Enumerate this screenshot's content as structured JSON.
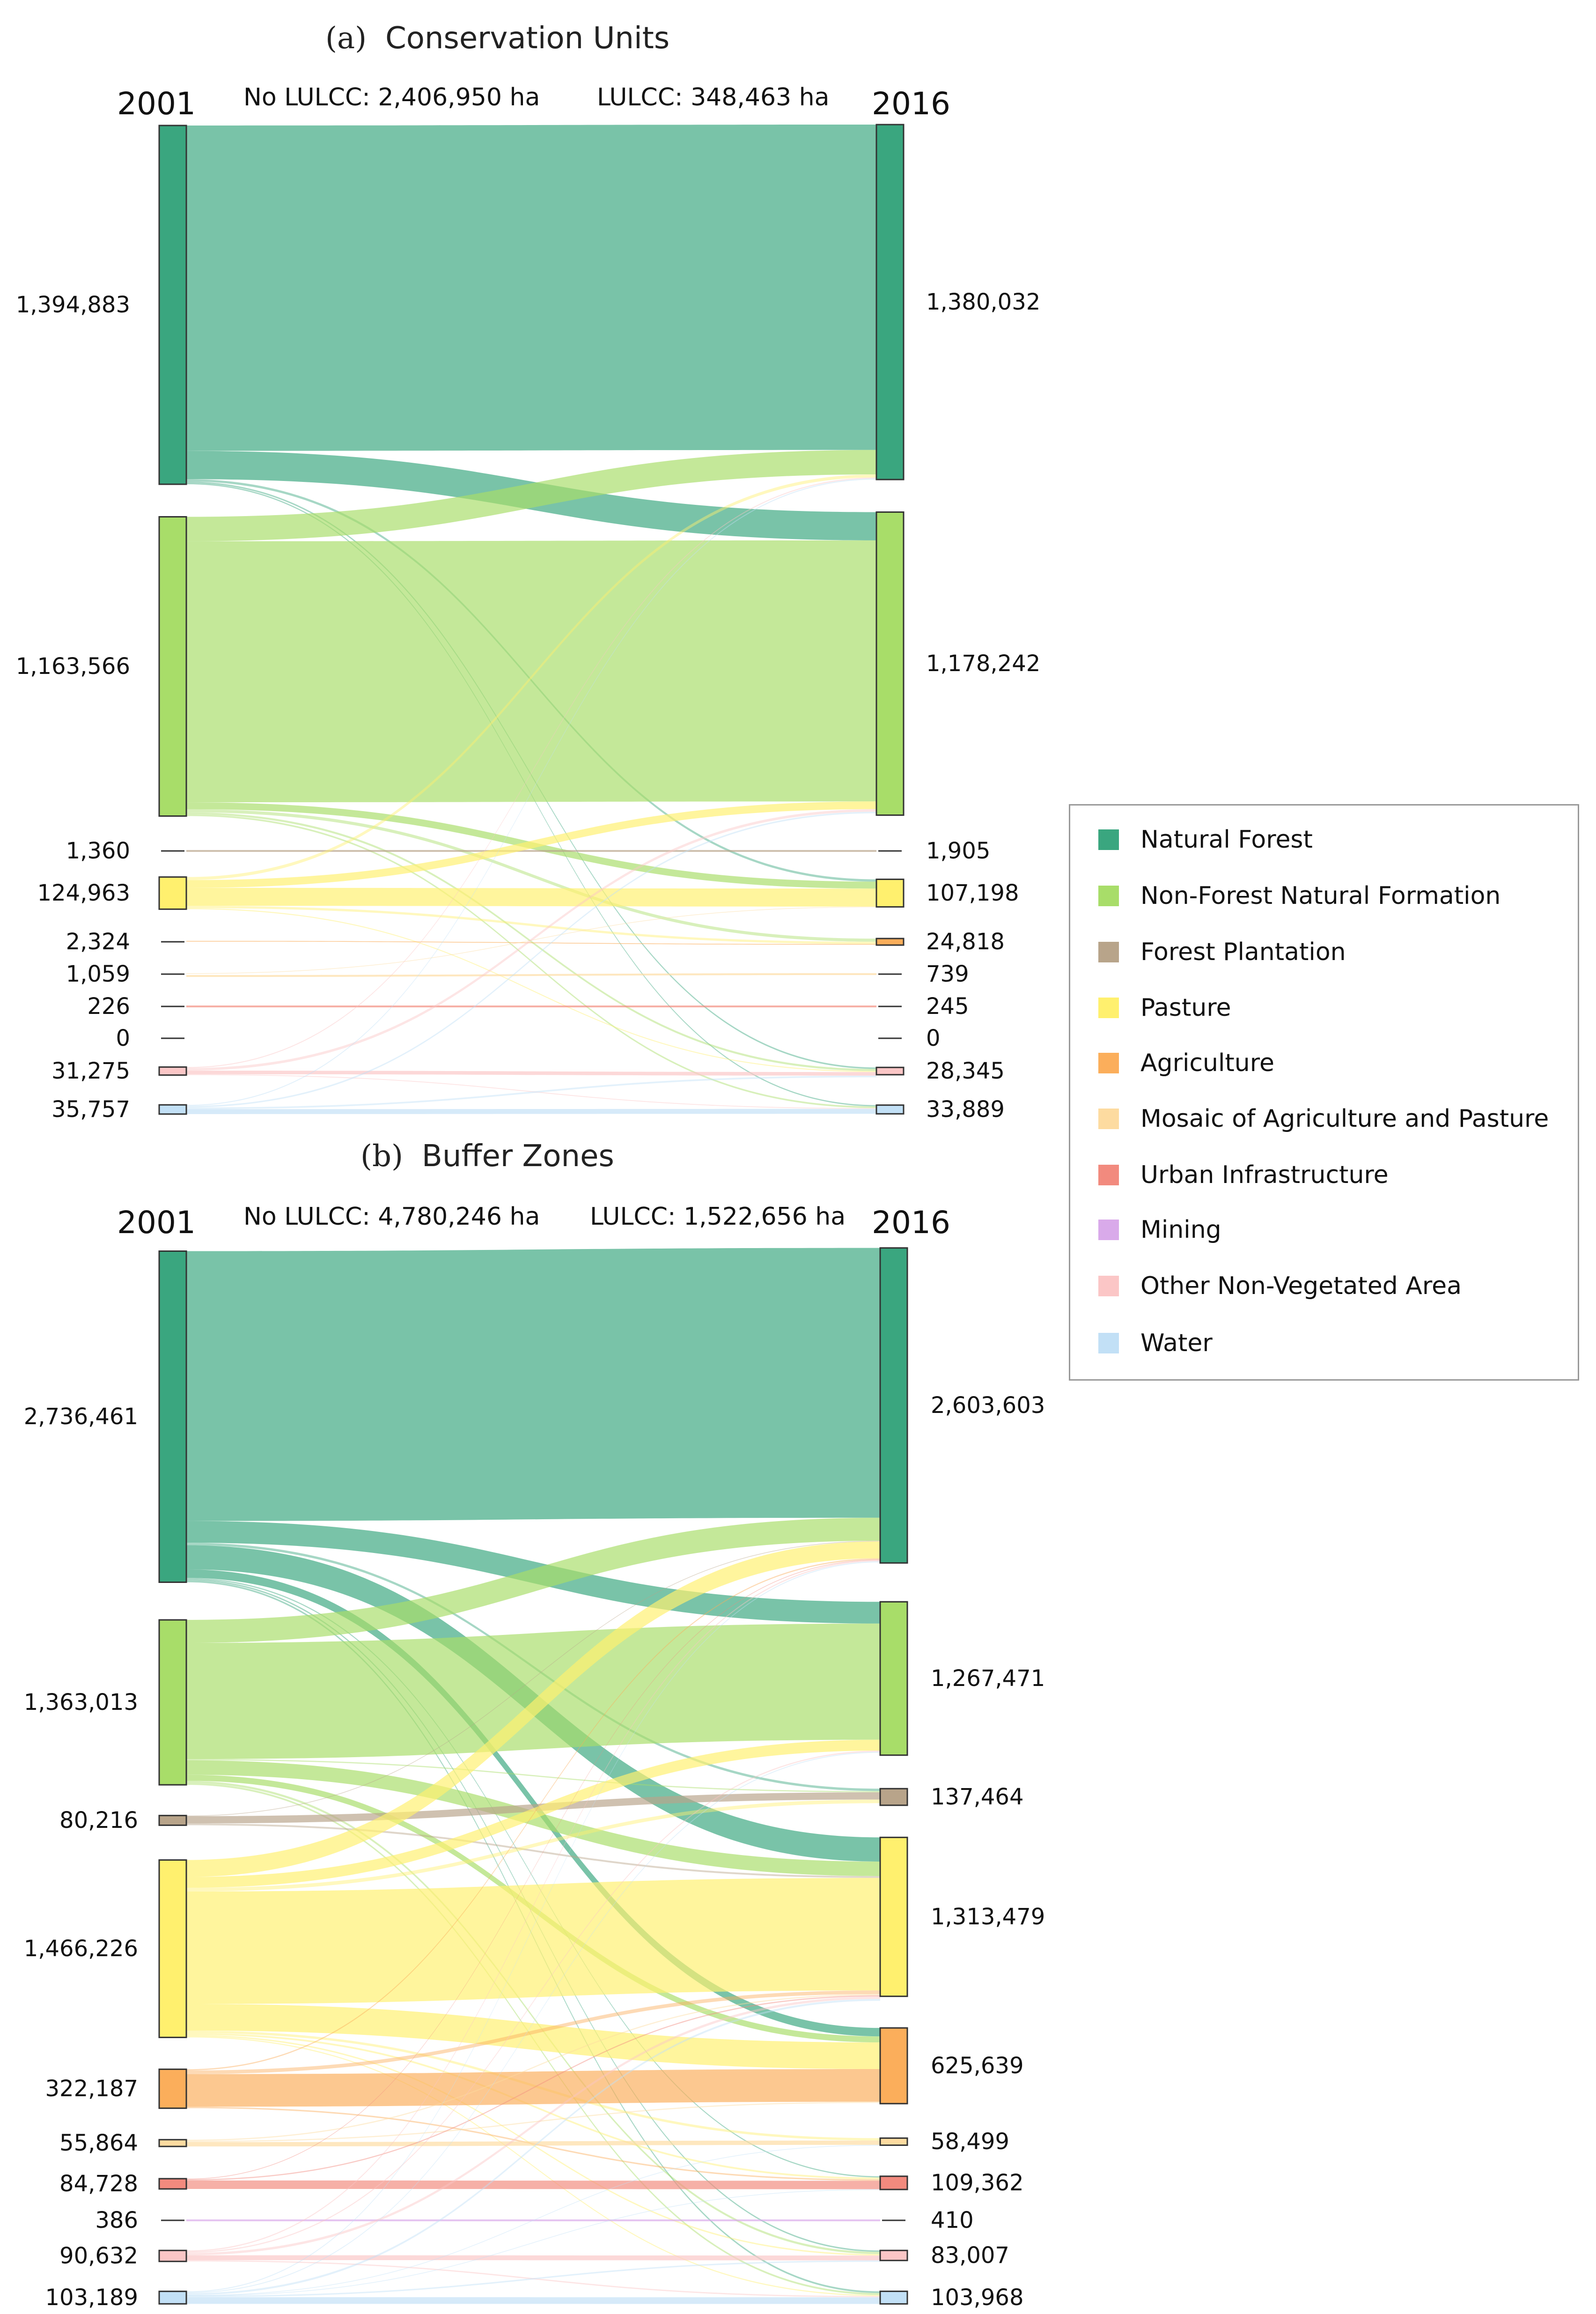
{
  "categories": [
    {
      "name": "Natural Forest",
      "color": "#3aa67f"
    },
    {
      "name": "Non-Forest Natural Formation",
      "color": "#a8dd69"
    },
    {
      "name": "Forest Plantation",
      "color": "#b8a48a"
    },
    {
      "name": "Pasture",
      "color": "#fff06e"
    },
    {
      "name": "Agriculture",
      "color": "#fbae5b"
    },
    {
      "name": "Mosaic of Agriculture and Pasture",
      "color": "#fddba0"
    },
    {
      "name": "Urban Infrastructure",
      "color": "#f28a7e"
    },
    {
      "name": "Mining",
      "color": "#d9aaea"
    },
    {
      "name": "Other Non-Vegetated Area",
      "color": "#fbc6c6"
    },
    {
      "name": "Water",
      "color": "#c2e0f6"
    }
  ],
  "chart_data": [
    {
      "type": "sankey",
      "panel_letter": "(a)",
      "title": "Conservation Units",
      "left_year": "2001",
      "right_year": "2016",
      "no_lulcc": "No LULCC: 2,406,950 ha",
      "lulcc": "LULCC: 348,463 ha",
      "nodes_2001": [
        {
          "cat": 0,
          "label": "1,394,883",
          "value": 1394883
        },
        {
          "cat": 1,
          "label": "1,163,566",
          "value": 1163566
        },
        {
          "cat": 2,
          "label": "1,360",
          "value": 1360
        },
        {
          "cat": 3,
          "label": "124,963",
          "value": 124963
        },
        {
          "cat": 4,
          "label": "2,324",
          "value": 2324
        },
        {
          "cat": 5,
          "label": "1,059",
          "value": 1059
        },
        {
          "cat": 6,
          "label": "226",
          "value": 226
        },
        {
          "cat": 7,
          "label": "0",
          "value": 0
        },
        {
          "cat": 8,
          "label": "31,275",
          "value": 31275
        },
        {
          "cat": 9,
          "label": "35,757",
          "value": 35757
        }
      ],
      "nodes_2016": [
        {
          "cat": 0,
          "label": "1,380,032",
          "value": 1380032
        },
        {
          "cat": 1,
          "label": "1,178,242",
          "value": 1178242
        },
        {
          "cat": 2,
          "label": "1,905",
          "value": 1905
        },
        {
          "cat": 3,
          "label": "107,198",
          "value": 107198
        },
        {
          "cat": 4,
          "label": "24,818",
          "value": 24818
        },
        {
          "cat": 5,
          "label": "739",
          "value": 739
        },
        {
          "cat": 6,
          "label": "245",
          "value": 245
        },
        {
          "cat": 7,
          "label": "0",
          "value": 0
        },
        {
          "cat": 8,
          "label": "28,345",
          "value": 28345
        },
        {
          "cat": 9,
          "label": "33,889",
          "value": 33889
        }
      ],
      "flows": [
        {
          "from": 0,
          "to": 0,
          "value": 1265000
        },
        {
          "from": 0,
          "to": 1,
          "value": 110000
        },
        {
          "from": 0,
          "to": 3,
          "value": 9000
        },
        {
          "from": 0,
          "to": 8,
          "value": 6000
        },
        {
          "from": 0,
          "to": 9,
          "value": 4883
        },
        {
          "from": 1,
          "to": 0,
          "value": 95000
        },
        {
          "from": 1,
          "to": 1,
          "value": 1015000
        },
        {
          "from": 1,
          "to": 3,
          "value": 27000
        },
        {
          "from": 1,
          "to": 4,
          "value": 12000
        },
        {
          "from": 1,
          "to": 8,
          "value": 8000
        },
        {
          "from": 1,
          "to": 9,
          "value": 6566
        },
        {
          "from": 2,
          "to": 2,
          "value": 1360
        },
        {
          "from": 3,
          "to": 0,
          "value": 12000
        },
        {
          "from": 3,
          "to": 1,
          "value": 30000
        },
        {
          "from": 3,
          "to": 3,
          "value": 70000
        },
        {
          "from": 3,
          "to": 4,
          "value": 9000
        },
        {
          "from": 3,
          "to": 8,
          "value": 3963
        },
        {
          "from": 4,
          "to": 4,
          "value": 2324
        },
        {
          "from": 5,
          "to": 5,
          "value": 739
        },
        {
          "from": 5,
          "to": 3,
          "value": 320
        },
        {
          "from": 6,
          "to": 6,
          "value": 226
        },
        {
          "from": 8,
          "to": 0,
          "value": 4000
        },
        {
          "from": 8,
          "to": 1,
          "value": 10000
        },
        {
          "from": 8,
          "to": 8,
          "value": 14000
        },
        {
          "from": 8,
          "to": 9,
          "value": 3275
        },
        {
          "from": 9,
          "to": 0,
          "value": 4032
        },
        {
          "from": 9,
          "to": 1,
          "value": 6000
        },
        {
          "from": 9,
          "to": 9,
          "value": 19165
        },
        {
          "from": 9,
          "to": 8,
          "value": 6560
        }
      ]
    },
    {
      "type": "sankey",
      "panel_letter": "(b)",
      "title": "Buffer Zones",
      "left_year": "2001",
      "right_year": "2016",
      "no_lulcc": "No LULCC: 4,780,246 ha",
      "lulcc": "LULCC: 1,522,656 ha",
      "nodes_2001": [
        {
          "cat": 0,
          "label": "2,736,461",
          "value": 2736461
        },
        {
          "cat": 1,
          "label": "1,363,013",
          "value": 1363013
        },
        {
          "cat": 2,
          "label": "80,216",
          "value": 80216
        },
        {
          "cat": 3,
          "label": "1,466,226",
          "value": 1466226
        },
        {
          "cat": 4,
          "label": "322,187",
          "value": 322187
        },
        {
          "cat": 5,
          "label": "55,864",
          "value": 55864
        },
        {
          "cat": 6,
          "label": "84,728",
          "value": 84728
        },
        {
          "cat": 7,
          "label": "386",
          "value": 386
        },
        {
          "cat": 8,
          "label": "90,632",
          "value": 90632
        },
        {
          "cat": 9,
          "label": "103,189",
          "value": 103189
        }
      ],
      "nodes_2016": [
        {
          "cat": 0,
          "label": "2,603,603",
          "value": 2603603
        },
        {
          "cat": 1,
          "label": "1,267,471",
          "value": 1267471
        },
        {
          "cat": 2,
          "label": "137,464",
          "value": 137464
        },
        {
          "cat": 3,
          "label": "1,313,479",
          "value": 1313479
        },
        {
          "cat": 4,
          "label": "625,639",
          "value": 625639
        },
        {
          "cat": 5,
          "label": "58,499",
          "value": 58499
        },
        {
          "cat": 6,
          "label": "109,362",
          "value": 109362
        },
        {
          "cat": 7,
          "label": "410",
          "value": 410
        },
        {
          "cat": 8,
          "label": "83,007",
          "value": 83007
        },
        {
          "cat": 9,
          "label": "103,968",
          "value": 103968
        }
      ],
      "flows": [
        {
          "from": 0,
          "to": 0,
          "value": 2230000
        },
        {
          "from": 0,
          "to": 1,
          "value": 180000
        },
        {
          "from": 0,
          "to": 2,
          "value": 20000
        },
        {
          "from": 0,
          "to": 3,
          "value": 200000
        },
        {
          "from": 0,
          "to": 4,
          "value": 70000
        },
        {
          "from": 0,
          "to": 6,
          "value": 10000
        },
        {
          "from": 0,
          "to": 8,
          "value": 12000
        },
        {
          "from": 0,
          "to": 9,
          "value": 14461
        },
        {
          "from": 1,
          "to": 0,
          "value": 190000
        },
        {
          "from": 1,
          "to": 1,
          "value": 960000
        },
        {
          "from": 1,
          "to": 2,
          "value": 10000
        },
        {
          "from": 1,
          "to": 3,
          "value": 120000
        },
        {
          "from": 1,
          "to": 4,
          "value": 50000
        },
        {
          "from": 1,
          "to": 8,
          "value": 18000
        },
        {
          "from": 1,
          "to": 9,
          "value": 15013
        },
        {
          "from": 2,
          "to": 2,
          "value": 60000
        },
        {
          "from": 2,
          "to": 3,
          "value": 15000
        },
        {
          "from": 2,
          "to": 0,
          "value": 5216
        },
        {
          "from": 3,
          "to": 0,
          "value": 140000
        },
        {
          "from": 3,
          "to": 1,
          "value": 90000
        },
        {
          "from": 3,
          "to": 2,
          "value": 30000
        },
        {
          "from": 3,
          "to": 3,
          "value": 930000
        },
        {
          "from": 3,
          "to": 4,
          "value": 220000
        },
        {
          "from": 3,
          "to": 5,
          "value": 20000
        },
        {
          "from": 3,
          "to": 6,
          "value": 15000
        },
        {
          "from": 3,
          "to": 8,
          "value": 12000
        },
        {
          "from": 3,
          "to": 9,
          "value": 9226
        },
        {
          "from": 4,
          "to": 0,
          "value": 10000
        },
        {
          "from": 4,
          "to": 3,
          "value": 30000
        },
        {
          "from": 4,
          "to": 4,
          "value": 270000
        },
        {
          "from": 4,
          "to": 6,
          "value": 12187
        },
        {
          "from": 5,
          "to": 3,
          "value": 10000
        },
        {
          "from": 5,
          "to": 5,
          "value": 36000
        },
        {
          "from": 5,
          "to": 4,
          "value": 9864
        },
        {
          "from": 6,
          "to": 6,
          "value": 70000
        },
        {
          "from": 6,
          "to": 0,
          "value": 5000
        },
        {
          "from": 6,
          "to": 3,
          "value": 9728
        },
        {
          "from": 7,
          "to": 7,
          "value": 386
        },
        {
          "from": 8,
          "to": 0,
          "value": 10000
        },
        {
          "from": 8,
          "to": 1,
          "value": 10000
        },
        {
          "from": 8,
          "to": 8,
          "value": 40000
        },
        {
          "from": 8,
          "to": 3,
          "value": 20000
        },
        {
          "from": 8,
          "to": 9,
          "value": 10632
        },
        {
          "from": 9,
          "to": 0,
          "value": 8000
        },
        {
          "from": 9,
          "to": 1,
          "value": 7471
        },
        {
          "from": 9,
          "to": 9,
          "value": 55000
        },
        {
          "from": 9,
          "to": 8,
          "value": 12000
        },
        {
          "from": 9,
          "to": 5,
          "value": 2499
        },
        {
          "from": 9,
          "to": 6,
          "value": 2175
        },
        {
          "from": 9,
          "to": 3,
          "value": 16044
        }
      ]
    }
  ]
}
